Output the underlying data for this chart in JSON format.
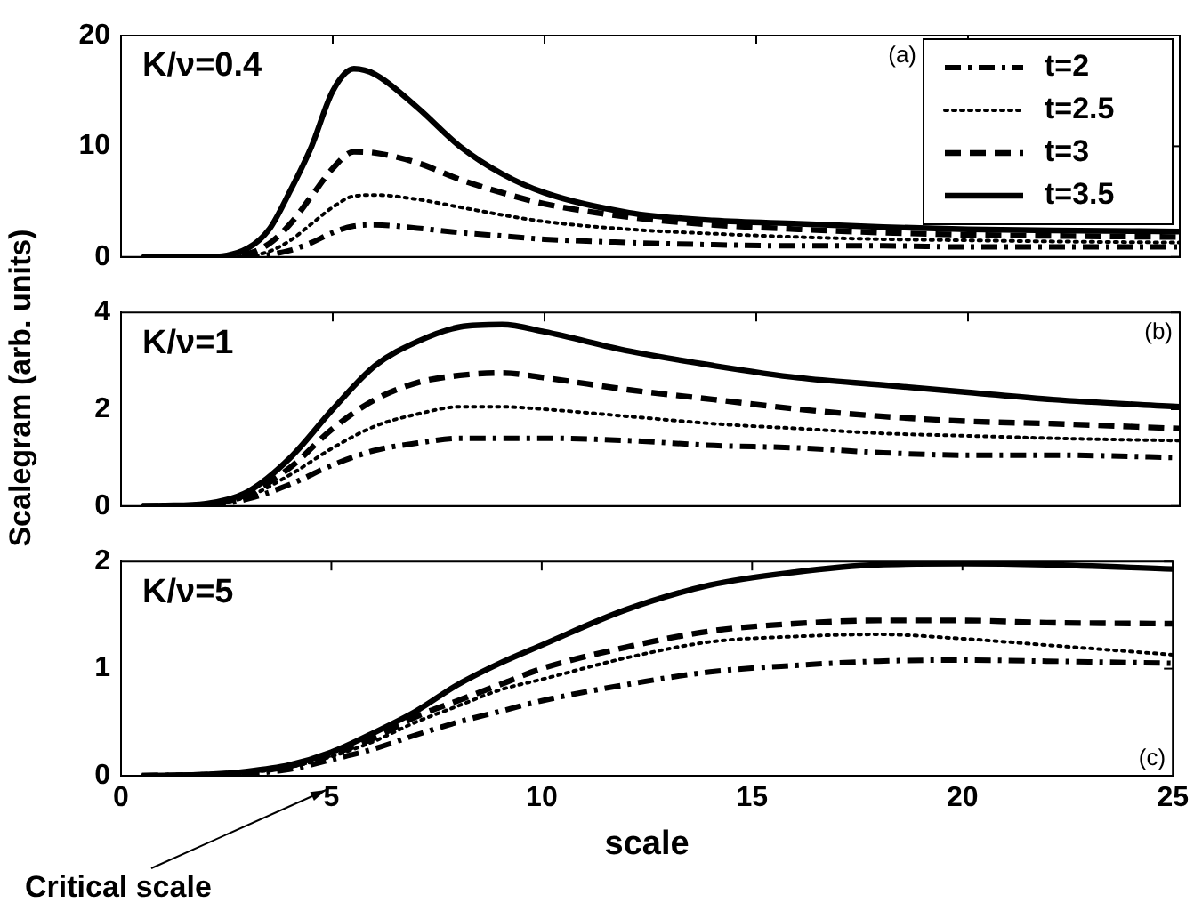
{
  "chart_data": [
    {
      "type": "line",
      "x": [
        0.5,
        1,
        2,
        3,
        3.5,
        4,
        4.5,
        5,
        5.5,
        6,
        7,
        8,
        9,
        10,
        12,
        14,
        16,
        18,
        20,
        22,
        25
      ],
      "xlim": [
        0,
        25
      ],
      "xticks": [
        {
          "value": 0,
          "label": null
        },
        {
          "value": 5,
          "label": null
        },
        {
          "value": 10,
          "label": null
        },
        {
          "value": 15,
          "label": null
        },
        {
          "value": 20,
          "label": null
        },
        {
          "value": 25,
          "label": null
        }
      ],
      "ylim": [
        0,
        20
      ],
      "yticks": [
        0,
        10,
        20
      ],
      "tick_labels": "y",
      "grid": false,
      "legend": "top right",
      "marker": "none",
      "annotations": [
        "K/ν=0.4",
        "(a)"
      ],
      "series": [
        {
          "name": "t=2",
          "color": "#000000",
          "line_style": "dashdot",
          "values": [
            0,
            0,
            0,
            0,
            0.2,
            0.6,
            1.3,
            2.2,
            2.8,
            2.9,
            2.6,
            2.2,
            1.9,
            1.6,
            1.3,
            1.1,
            1,
            1,
            0.9,
            0.9,
            0.9
          ]
        },
        {
          "name": "t=2.5",
          "color": "#000000",
          "line_style": "dotted",
          "values": [
            0,
            0,
            0,
            0.1,
            0.5,
            1.5,
            3,
            4.5,
            5.5,
            5.6,
            5.2,
            4.5,
            3.8,
            3.2,
            2.5,
            2.1,
            1.8,
            1.6,
            1.5,
            1.4,
            1.3
          ]
        },
        {
          "name": "t=3",
          "color": "#000000",
          "line_style": "dashed",
          "values": [
            0,
            0,
            0,
            0.3,
            1.2,
            3,
            5.5,
            8,
            9.5,
            9.4,
            8.5,
            7,
            5.8,
            4.8,
            3.6,
            2.9,
            2.5,
            2.2,
            2,
            1.9,
            1.8
          ]
        },
        {
          "name": "t=3.5",
          "color": "#000000",
          "line_style": "solid",
          "values": [
            0,
            0,
            0,
            0.8,
            2.5,
            6,
            10,
            15,
            17,
            16.5,
            13.5,
            10,
            7.5,
            5.8,
            4,
            3.3,
            3,
            2.7,
            2.5,
            2.4,
            2.3
          ]
        }
      ]
    },
    {
      "type": "line",
      "x": [
        0.5,
        1,
        2,
        3,
        4,
        5,
        6,
        7,
        8,
        9,
        10,
        12,
        14,
        16,
        18,
        20,
        22,
        25
      ],
      "xlim": [
        0,
        25
      ],
      "xticks": [
        {
          "value": 0,
          "label": null
        },
        {
          "value": 5,
          "label": null
        },
        {
          "value": 10,
          "label": null
        },
        {
          "value": 15,
          "label": null
        },
        {
          "value": 20,
          "label": null
        },
        {
          "value": 25,
          "label": null
        }
      ],
      "ylim": [
        0,
        4
      ],
      "yticks": [
        0,
        2,
        4
      ],
      "tick_labels": "y",
      "grid": false,
      "marker": "none",
      "ylabel": "Scalegram (arb. units)",
      "annotations": [
        "K/ν=1",
        "(b)"
      ],
      "series": [
        {
          "color": "#000000",
          "line_style": "dashdot",
          "values": [
            0,
            0,
            0.01,
            0.15,
            0.45,
            0.85,
            1.15,
            1.3,
            1.4,
            1.4,
            1.4,
            1.35,
            1.25,
            1.2,
            1.1,
            1.05,
            1.05,
            1.0
          ]
        },
        {
          "color": "#000000",
          "line_style": "dotted",
          "values": [
            0,
            0,
            0.02,
            0.2,
            0.65,
            1.2,
            1.65,
            1.9,
            2.05,
            2.05,
            2,
            1.85,
            1.7,
            1.6,
            1.5,
            1.45,
            1.4,
            1.35
          ]
        },
        {
          "color": "#000000",
          "line_style": "dashed",
          "values": [
            0,
            0,
            0.03,
            0.25,
            0.8,
            1.6,
            2.2,
            2.55,
            2.7,
            2.75,
            2.65,
            2.4,
            2.2,
            2,
            1.85,
            1.75,
            1.7,
            1.6
          ]
        },
        {
          "color": "#000000",
          "line_style": "solid",
          "values": [
            0,
            0.01,
            0.05,
            0.3,
            1,
            2,
            2.9,
            3.4,
            3.7,
            3.75,
            3.6,
            3.2,
            2.9,
            2.65,
            2.5,
            2.35,
            2.2,
            2.05
          ]
        }
      ]
    },
    {
      "type": "line",
      "x": [
        0.5,
        2,
        3,
        4,
        5,
        6,
        7,
        8,
        9,
        10,
        12,
        14,
        16,
        18,
        20,
        22,
        25
      ],
      "xlim": [
        0,
        25
      ],
      "xticks": [
        0,
        5,
        10,
        15,
        20,
        25
      ],
      "ylim": [
        0,
        2
      ],
      "yticks": [
        0,
        1,
        2
      ],
      "grid": false,
      "marker": "none",
      "xlabel": "scale",
      "annotations": [
        "K/ν=5",
        "(c)",
        "Critical scale"
      ],
      "series": [
        {
          "color": "#000000",
          "line_style": "dashdot",
          "values": [
            0,
            0.01,
            0.02,
            0.06,
            0.15,
            0.25,
            0.38,
            0.5,
            0.6,
            0.7,
            0.85,
            0.97,
            1.03,
            1.07,
            1.08,
            1.07,
            1.05
          ]
        },
        {
          "color": "#000000",
          "line_style": "dotted",
          "values": [
            0,
            0.01,
            0.03,
            0.08,
            0.18,
            0.32,
            0.5,
            0.65,
            0.8,
            0.9,
            1.1,
            1.25,
            1.3,
            1.32,
            1.28,
            1.22,
            1.13
          ]
        },
        {
          "color": "#000000",
          "line_style": "dashed",
          "values": [
            0,
            0.01,
            0.03,
            0.09,
            0.2,
            0.35,
            0.55,
            0.7,
            0.85,
            1.0,
            1.2,
            1.35,
            1.42,
            1.45,
            1.45,
            1.43,
            1.42
          ]
        },
        {
          "color": "#000000",
          "line_style": "solid",
          "values": [
            0,
            0.01,
            0.04,
            0.1,
            0.22,
            0.4,
            0.6,
            0.85,
            1.05,
            1.22,
            1.55,
            1.78,
            1.9,
            1.97,
            1.98,
            1.97,
            1.93
          ]
        }
      ]
    }
  ]
}
